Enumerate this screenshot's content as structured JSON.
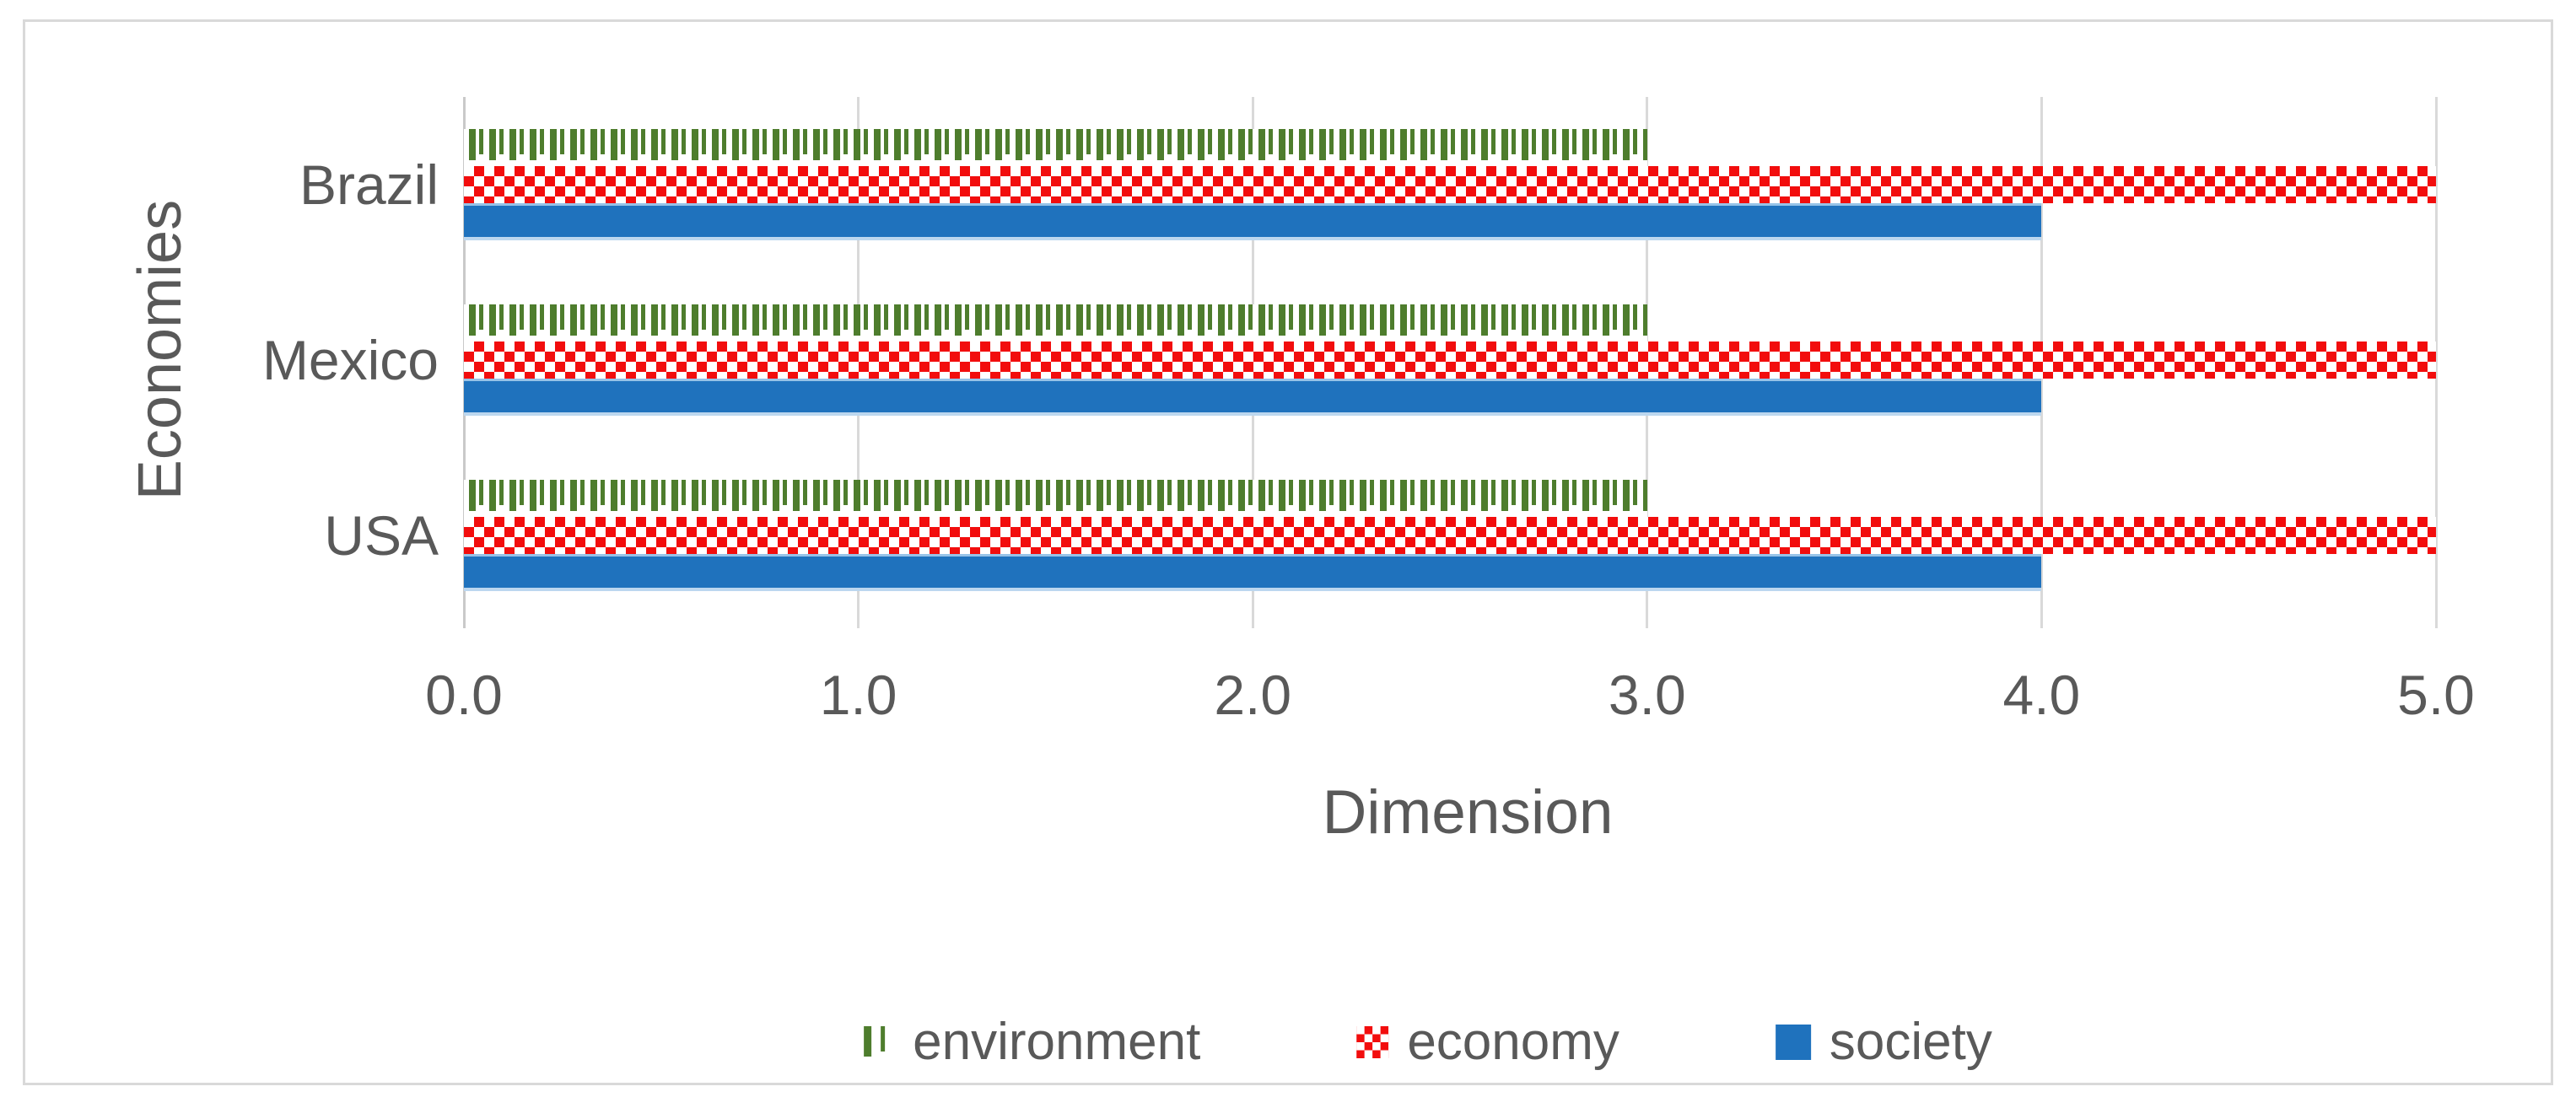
{
  "chart_data": {
    "type": "bar",
    "orientation": "horizontal",
    "categories": [
      "Brazil",
      "Mexico",
      "USA"
    ],
    "series": [
      {
        "name": "environment",
        "values": [
          3.0,
          3.0,
          3.0
        ],
        "pattern": "vertical-dashes",
        "color": "#4e7d2d"
      },
      {
        "name": "economy",
        "values": [
          5.0,
          5.0,
          5.0
        ],
        "pattern": "checkerboard",
        "color": "#f20d0d"
      },
      {
        "name": "society",
        "values": [
          4.0,
          4.0,
          4.0
        ],
        "pattern": "solid",
        "color": "#1f72bd"
      }
    ],
    "xlabel": "Dimension",
    "ylabel": "Economies",
    "xlim": [
      0.0,
      5.0
    ],
    "xticks": [
      0.0,
      1.0,
      2.0,
      3.0,
      4.0,
      5.0
    ],
    "xtick_labels": [
      "0.0",
      "1.0",
      "2.0",
      "3.0",
      "4.0",
      "5.0"
    ],
    "grid": true,
    "legend_position": "bottom"
  },
  "colors": {
    "gridline": "#d9d9d9",
    "axis_line": "#c9c9c9",
    "text": "#595959",
    "frame_border": "#d9d9d9",
    "society_edge": "#96c3e8",
    "background": "#ffffff"
  }
}
